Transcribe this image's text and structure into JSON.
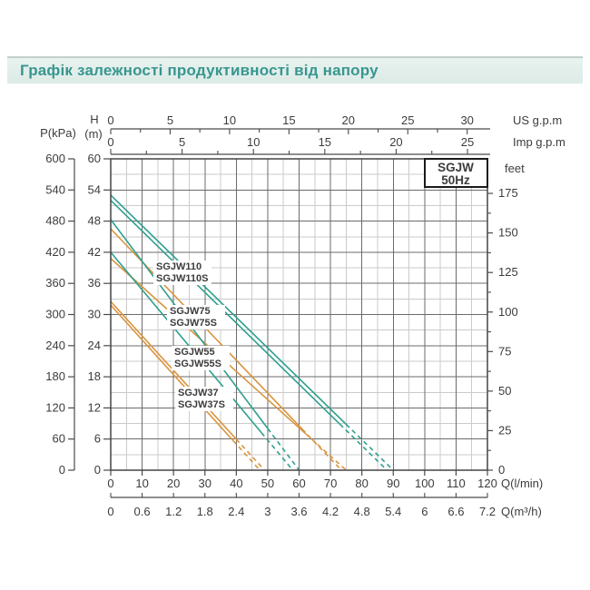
{
  "header": {
    "title": "Графік залежності продуктивності від напору"
  },
  "chart_data": {
    "type": "line",
    "badge": {
      "line1": "SGJW",
      "line2": "50Hz"
    },
    "colors": {
      "teal": "#2f9f8e",
      "orange": "#d9943f",
      "grid_minor": "#cbcbcb",
      "grid_major": "#6b6b6b",
      "axis": "#4a4a4a",
      "text": "#3c3c3c",
      "label_text": "#222222",
      "title_teal": "#38968f"
    },
    "x_axis_lpm": {
      "label": "Q(l/min)",
      "min": 0,
      "max": 120,
      "ticks": [
        0,
        10,
        20,
        30,
        40,
        50,
        60,
        70,
        80,
        90,
        100,
        110,
        120
      ]
    },
    "x_axis_m3h": {
      "label": "Q(m³/h)",
      "ticks": [
        0,
        0.6,
        1.2,
        1.8,
        2.4,
        3,
        3.6,
        4.2,
        4.8,
        5.4,
        6,
        6.6,
        7.2
      ]
    },
    "x_axis_us_gpm": {
      "label": "US g.p.m",
      "ticks": [
        0,
        5,
        10,
        15,
        20,
        25,
        30
      ],
      "lpm_per_unit": 3.785,
      "minor_step": 2.5
    },
    "x_axis_imp_gpm": {
      "label": "Imp g.p.m",
      "ticks": [
        0,
        5,
        10,
        15,
        20,
        25
      ],
      "lpm_per_unit": 4.546,
      "minor_step": 2.5
    },
    "y_axis_head_m": {
      "label_line1": "H",
      "label_line2": "(m)",
      "min": 0,
      "max": 60,
      "ticks": [
        0,
        6,
        12,
        18,
        24,
        30,
        36,
        42,
        48,
        54,
        60
      ]
    },
    "y_axis_kpa": {
      "label": "P(kPa)",
      "ticks": [
        0,
        60,
        120,
        180,
        240,
        300,
        360,
        420,
        480,
        540,
        600
      ]
    },
    "y_axis_feet": {
      "label": "feet",
      "ticks": [
        0,
        25,
        50,
        75,
        100,
        125,
        150,
        175
      ],
      "m_per_foot": 0.3048,
      "minor_step": 12.5
    },
    "grid": {
      "minor_q_step": 5,
      "major_q_step": 10,
      "minor_h_step": 3,
      "major_h_step": 6
    },
    "series": [
      {
        "name": "SGJW110",
        "color": "teal",
        "h_at_q0_m": 53,
        "q_at_h0_lpm": 90,
        "dash_from_q_lpm": 75
      },
      {
        "name": "SGJW110S",
        "color": "teal",
        "h_at_q0_m": 52,
        "q_at_h0_lpm": 88,
        "dash_from_q_lpm": 73
      },
      {
        "name": "SGJW75",
        "color": "orange",
        "h_at_q0_m": 46.5,
        "q_at_h0_lpm": 73.5,
        "dash_from_q_lpm": 61
      },
      {
        "name": "SGJW75S",
        "color": "orange",
        "h_at_q0_m": 40.8,
        "q_at_h0_lpm": 75,
        "dash_from_q_lpm": 62
      },
      {
        "name": "SGJW55",
        "color": "teal",
        "h_at_q0_m": 48.3,
        "q_at_h0_lpm": 60,
        "dash_from_q_lpm": 50
      },
      {
        "name": "SGJW55S",
        "color": "teal",
        "h_at_q0_m": 42,
        "q_at_h0_lpm": 58,
        "dash_from_q_lpm": 48
      },
      {
        "name": "SGJW37",
        "color": "orange",
        "h_at_q0_m": 32.5,
        "q_at_h0_lpm": 49,
        "dash_from_q_lpm": 40
      },
      {
        "name": "SGJW37S",
        "color": "orange",
        "h_at_q0_m": 31.8,
        "q_at_h0_lpm": 47.5,
        "dash_from_q_lpm": 39
      }
    ],
    "series_label_blocks": [
      {
        "line1": "SGJW110",
        "line2": "SGJW110S"
      },
      {
        "line1": "SGJW75",
        "line2": "SGJW75S"
      },
      {
        "line1": "SGJW55",
        "line2": "SGJW55S"
      },
      {
        "line1": "SGJW37",
        "line2": "SGJW37S"
      }
    ]
  }
}
